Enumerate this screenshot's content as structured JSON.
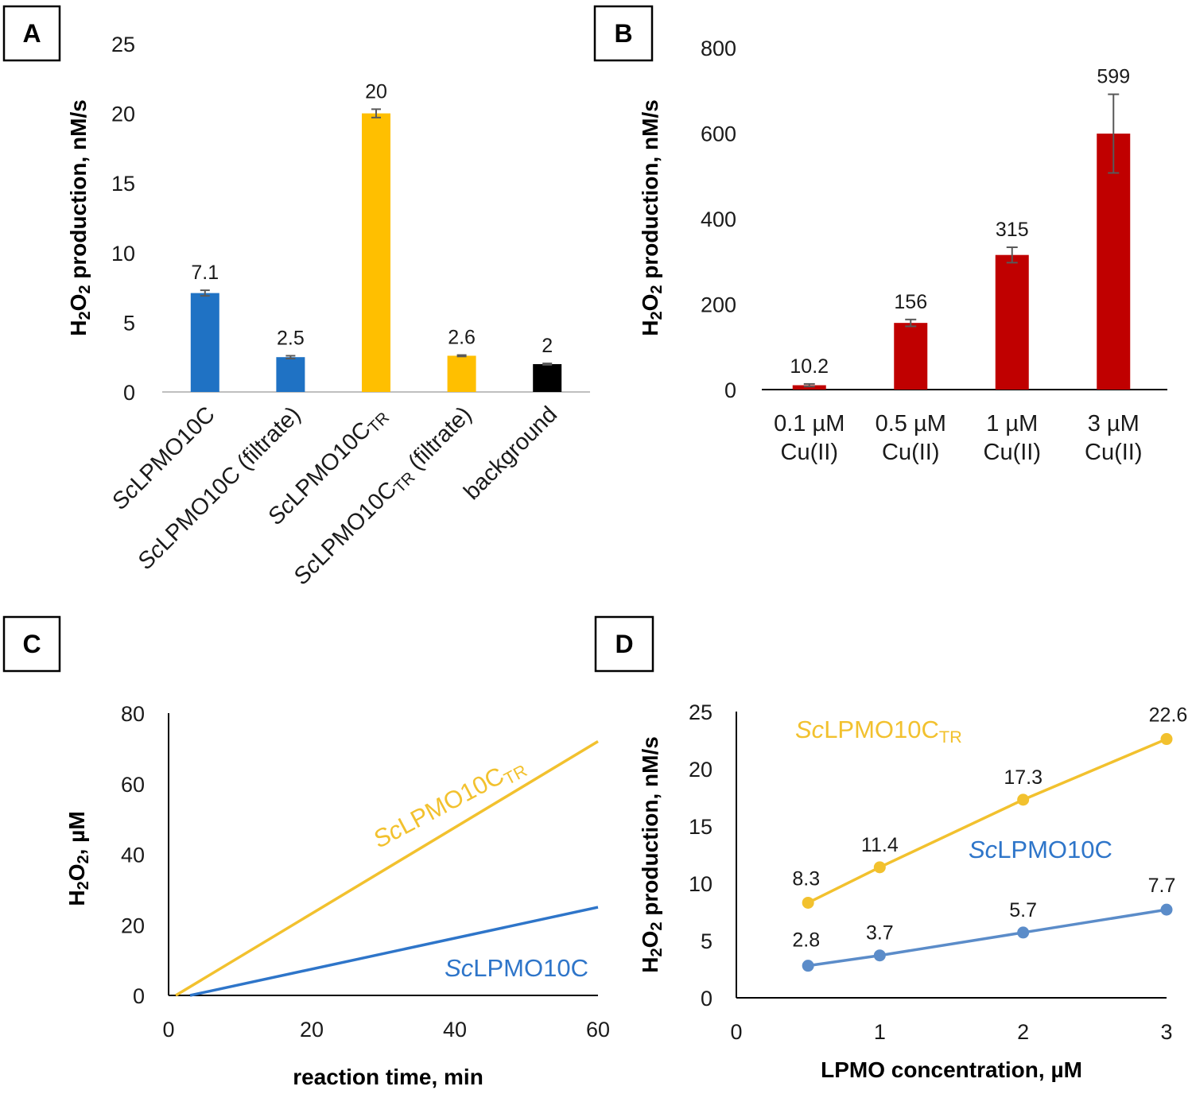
{
  "colors": {
    "blue": "#1f72c4",
    "yellow": "#ffbf00",
    "black": "#000000",
    "red": "#c00000",
    "lineYellow": "#f2c12e",
    "lineBlue": "#2e75c9",
    "dotBlue": "#5b8cc9",
    "error": "#595959"
  },
  "chart_data": [
    {
      "panel": "A",
      "type": "bar",
      "ylabel_parts": [
        "H",
        "2",
        "O",
        "2",
        " production, nM/s"
      ],
      "ylim": [
        0,
        25
      ],
      "yticks": [
        0,
        5,
        10,
        15,
        20,
        25
      ],
      "categories": [
        {
          "prefix": "Sc",
          "main": "LPMO10C",
          "sub": "",
          "suffix": ""
        },
        {
          "prefix": "Sc",
          "main": "LPMO10C",
          "sub": "",
          "suffix": " (filtrate)"
        },
        {
          "prefix": "Sc",
          "main": "LPMO10C",
          "sub": "TR",
          "suffix": ""
        },
        {
          "prefix": "Sc",
          "main": "LPMO10C",
          "sub": "TR",
          "suffix": " (filtrate)"
        },
        {
          "prefix": "",
          "main": "background",
          "sub": "",
          "suffix": ""
        }
      ],
      "values": [
        7.1,
        2.5,
        20,
        2.6,
        2
      ],
      "labels": [
        "7.1",
        "2.5",
        "20",
        "2.6",
        "2"
      ],
      "errors": [
        0.2,
        0.1,
        0.3,
        0.05,
        0.05
      ],
      "colorKeys": [
        "blue",
        "blue",
        "yellow",
        "yellow",
        "black"
      ]
    },
    {
      "panel": "B",
      "type": "bar",
      "ylabel_parts": [
        "H",
        "2",
        "O",
        "2",
        " production, nM/s"
      ],
      "ylim": [
        0,
        800
      ],
      "yticks": [
        0,
        200,
        400,
        600,
        800
      ],
      "categories": [
        [
          "0.1 µM",
          "Cu(II)"
        ],
        [
          "0.5 µM",
          "Cu(II)"
        ],
        [
          "1 µM",
          "Cu(II)"
        ],
        [
          "3 µM",
          "Cu(II)"
        ]
      ],
      "values": [
        10.2,
        156,
        315,
        599
      ],
      "labels": [
        "10.2",
        "156",
        "315",
        "599"
      ],
      "errors": [
        3,
        8,
        18,
        92
      ],
      "colorKeys": [
        "red",
        "red",
        "red",
        "red"
      ]
    },
    {
      "panel": "C",
      "type": "line",
      "ylabel_parts": [
        "H",
        "2",
        "O",
        "2",
        ", µM"
      ],
      "xlabel": "reaction time, min",
      "xlim": [
        0,
        60
      ],
      "ylim": [
        0,
        80
      ],
      "xticks": [
        0,
        20,
        40,
        60
      ],
      "yticks": [
        0,
        20,
        40,
        60,
        80
      ],
      "series": [
        {
          "prefix": "Sc",
          "main": "LPMO10C",
          "sub": "TR",
          "x": [
            1,
            60
          ],
          "y": [
            0,
            72
          ],
          "colorKey": "lineYellow"
        },
        {
          "prefix": "Sc",
          "main": "LPMO10C",
          "sub": "",
          "x": [
            3,
            60
          ],
          "y": [
            0,
            25
          ],
          "colorKey": "lineBlue"
        }
      ]
    },
    {
      "panel": "D",
      "type": "line",
      "ylabel_parts": [
        "H",
        "2",
        "O",
        "2",
        " production, nM/s"
      ],
      "xlabel": "LPMO concentration, µM",
      "xlim": [
        0,
        3
      ],
      "ylim": [
        0,
        25
      ],
      "xticks": [
        0,
        1,
        2,
        3
      ],
      "yticks": [
        0,
        5,
        10,
        15,
        20,
        25
      ],
      "series": [
        {
          "prefix": "Sc",
          "main": "LPMO10C",
          "sub": "TR",
          "x": [
            0.5,
            1,
            2,
            3
          ],
          "y": [
            8.3,
            11.4,
            17.3,
            22.6
          ],
          "labels": [
            "8.3",
            "11.4",
            "17.3",
            "22.6"
          ],
          "colorKey": "lineYellow"
        },
        {
          "prefix": "Sc",
          "main": "LPMO10C",
          "sub": "",
          "x": [
            0.5,
            1,
            2,
            3
          ],
          "y": [
            2.8,
            3.7,
            5.7,
            7.7
          ],
          "labels": [
            "2.8",
            "3.7",
            "5.7",
            "7.7"
          ],
          "colorKey": "dotBlue"
        }
      ]
    }
  ]
}
